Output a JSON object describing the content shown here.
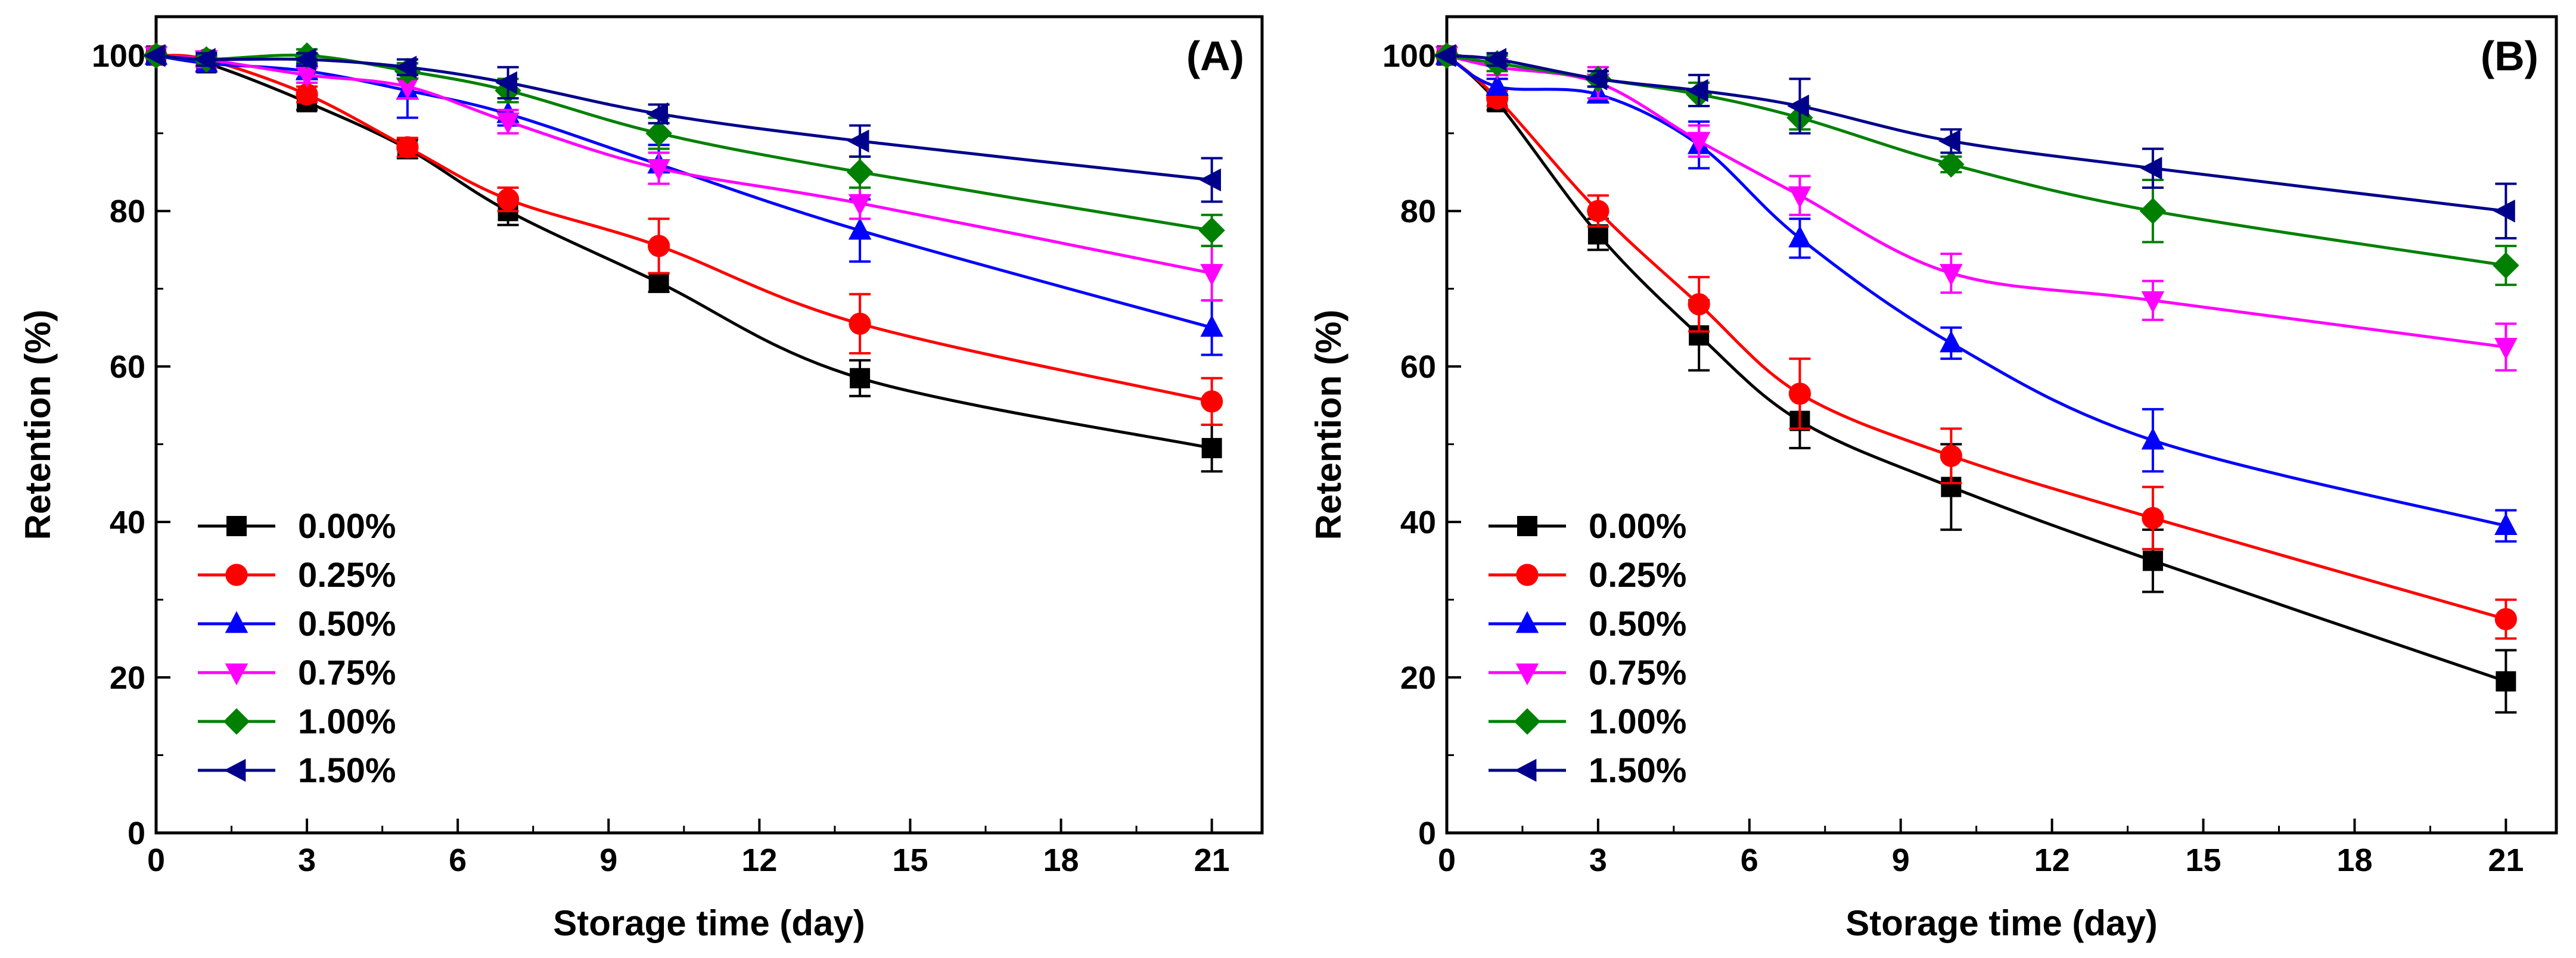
{
  "chart_data": [
    {
      "type": "line",
      "panel_label": "(A)",
      "xlabel": "Storage time (day)",
      "ylabel": "Retention (%)",
      "xlim": [
        0,
        22
      ],
      "ylim": [
        0,
        105
      ],
      "xticks": [
        0,
        3,
        6,
        9,
        12,
        15,
        18,
        21
      ],
      "yticks": [
        0,
        20,
        40,
        60,
        80,
        100
      ],
      "legend_position": "bottom-left",
      "x": [
        0,
        1,
        3,
        5,
        7,
        10,
        14,
        21
      ],
      "series": [
        {
          "name": "0.00%",
          "color": "#000000",
          "marker": "square",
          "values": [
            100,
            99.0,
            94.0,
            88.0,
            80.0,
            70.8,
            58.5,
            49.5
          ],
          "errors": [
            0,
            1.0,
            1.0,
            1.2,
            1.8,
            1.2,
            2.3,
            3.0
          ]
        },
        {
          "name": "0.25%",
          "color": "#ff0000",
          "marker": "circle",
          "values": [
            100,
            99.5,
            95.0,
            88.2,
            81.5,
            75.5,
            65.5,
            55.5
          ],
          "errors": [
            0,
            1.0,
            1.0,
            1.2,
            1.5,
            3.5,
            3.8,
            3.0
          ]
        },
        {
          "name": "0.50%",
          "color": "#0000ff",
          "marker": "triangle-up",
          "values": [
            100,
            99.0,
            98.0,
            95.5,
            92.5,
            86.0,
            77.5,
            65.0
          ],
          "errors": [
            0,
            1.0,
            1.0,
            3.5,
            1.5,
            2.5,
            4.0,
            3.5
          ]
        },
        {
          "name": "0.75%",
          "color": "#ff00ff",
          "marker": "triangle-down",
          "values": [
            100,
            99.5,
            97.5,
            96.0,
            91.5,
            85.5,
            81.0,
            72.0
          ],
          "errors": [
            0,
            1.0,
            1.0,
            1.5,
            1.5,
            2.0,
            2.0,
            3.5
          ]
        },
        {
          "name": "1.00%",
          "color": "#008000",
          "marker": "diamond",
          "values": [
            100,
            99.5,
            100.0,
            98.0,
            95.5,
            90.0,
            85.0,
            77.5
          ],
          "errors": [
            0,
            0.8,
            0.8,
            1.0,
            1.5,
            2.0,
            2.0,
            2.0
          ]
        },
        {
          "name": "1.50%",
          "color": "#00008b",
          "marker": "triangle-left",
          "values": [
            100,
            99.5,
            99.5,
            98.5,
            96.5,
            92.5,
            89.0,
            84.0
          ],
          "errors": [
            0,
            0.8,
            0.8,
            1.0,
            2.0,
            1.2,
            2.0,
            2.8
          ]
        }
      ]
    },
    {
      "type": "line",
      "panel_label": "(B)",
      "xlabel": "Storage time (day)",
      "ylabel": "Retention (%)",
      "xlim": [
        0,
        22
      ],
      "ylim": [
        0,
        105
      ],
      "xticks": [
        0,
        3,
        6,
        9,
        12,
        15,
        18,
        21
      ],
      "yticks": [
        0,
        20,
        40,
        60,
        80,
        100
      ],
      "legend_position": "bottom-left",
      "x": [
        0,
        1,
        3,
        5,
        7,
        10,
        14,
        21
      ],
      "series": [
        {
          "name": "0.00%",
          "color": "#000000",
          "marker": "square",
          "values": [
            100,
            94.0,
            77.0,
            64.0,
            53.0,
            44.5,
            35.0,
            19.5
          ],
          "errors": [
            0,
            1.0,
            2.0,
            4.5,
            3.5,
            5.5,
            4.0,
            4.0
          ]
        },
        {
          "name": "0.25%",
          "color": "#ff0000",
          "marker": "circle",
          "values": [
            100,
            94.5,
            80.0,
            68.0,
            56.5,
            48.5,
            40.5,
            27.5
          ],
          "errors": [
            0,
            1.0,
            2.0,
            3.5,
            4.5,
            3.5,
            4.0,
            2.5
          ]
        },
        {
          "name": "0.50%",
          "color": "#0000ff",
          "marker": "triangle-up",
          "values": [
            100,
            96.0,
            95.0,
            88.5,
            76.5,
            63.0,
            50.5,
            39.5
          ],
          "errors": [
            0,
            1.0,
            1.0,
            3.0,
            2.5,
            2.0,
            4.0,
            2.0
          ]
        },
        {
          "name": "0.75%",
          "color": "#ff00ff",
          "marker": "triangle-down",
          "values": [
            100,
            98.5,
            96.5,
            89.0,
            82.0,
            72.0,
            68.5,
            62.5
          ],
          "errors": [
            0,
            1.0,
            2.0,
            2.0,
            2.5,
            2.5,
            2.5,
            3.0
          ]
        },
        {
          "name": "1.00%",
          "color": "#008000",
          "marker": "diamond",
          "values": [
            100,
            99.0,
            97.0,
            95.0,
            92.0,
            86.0,
            80.0,
            73.0
          ],
          "errors": [
            0,
            1.0,
            1.0,
            1.5,
            1.5,
            1.0,
            4.0,
            2.5
          ]
        },
        {
          "name": "1.50%",
          "color": "#00008b",
          "marker": "triangle-left",
          "values": [
            100,
            99.5,
            97.0,
            95.5,
            93.5,
            89.0,
            85.5,
            80.0
          ],
          "errors": [
            0,
            0.8,
            1.0,
            2.0,
            3.5,
            1.5,
            2.5,
            3.5
          ]
        }
      ]
    }
  ]
}
